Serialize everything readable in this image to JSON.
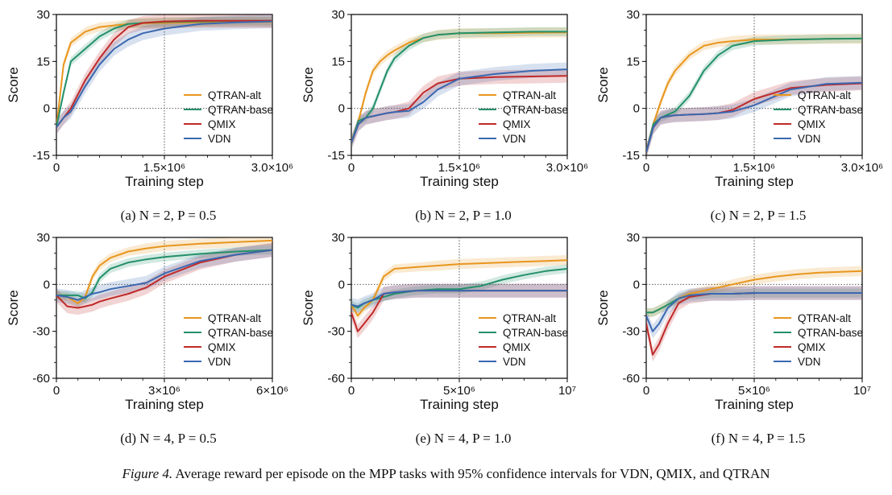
{
  "figure": {
    "caption_label": "Figure 4.",
    "caption_text": " Average reward per episode on the MPP tasks with 95% confidence intervals for VDN, QMIX, and QTRAN"
  },
  "series_colors": {
    "QTRAN-alt": "#e8961e",
    "QTRAN-base": "#23906a",
    "QMIX": "#c02a2a",
    "VDN": "#3a68b0"
  },
  "chart_data": [
    {
      "type": "line",
      "subcaption": "(a) N = 2, P = 0.5",
      "xlabel": "Training step",
      "ylabel": "Score",
      "xlim": [
        0,
        3000000
      ],
      "ylim": [
        -15,
        30
      ],
      "xticks": [
        0,
        1500000,
        3000000
      ],
      "xtick_labels": [
        "0",
        "1.5×10⁶",
        "3.0×10⁶"
      ],
      "yticks": [
        -15,
        0,
        15,
        30
      ],
      "ytick_labels": [
        "-15",
        "0",
        "15",
        "30"
      ],
      "vline": 1500000,
      "hline": 0,
      "legend": "bottom-right",
      "x": [
        0,
        100000,
        200000,
        400000,
        600000,
        800000,
        1000000,
        1200000,
        1500000,
        2000000,
        2500000,
        3000000
      ],
      "series": [
        {
          "name": "QTRAN-alt",
          "values": [
            -6,
            14,
            21,
            24.5,
            26,
            26.5,
            27,
            27.2,
            27.3,
            27.5,
            27.6,
            27.6
          ]
        },
        {
          "name": "QTRAN-base",
          "values": [
            -6,
            5,
            15,
            19,
            23,
            25.5,
            27,
            27.3,
            27.6,
            27.8,
            28,
            28
          ]
        },
        {
          "name": "QMIX",
          "values": [
            -6,
            -3,
            0,
            9,
            16,
            22,
            26,
            27.3,
            27.8,
            28,
            28,
            28
          ]
        },
        {
          "name": "VDN",
          "values": [
            -6,
            -3,
            -1,
            7,
            14,
            19,
            22,
            24,
            25.5,
            27,
            27.5,
            27.8
          ]
        }
      ]
    },
    {
      "type": "line",
      "subcaption": "(b) N = 2, P = 1.0",
      "xlabel": "Training step",
      "ylabel": "Score",
      "xlim": [
        0,
        3000000
      ],
      "ylim": [
        -15,
        30
      ],
      "xticks": [
        0,
        1500000,
        3000000
      ],
      "xtick_labels": [
        "0",
        "1.5×10⁶",
        "3.0×10⁶"
      ],
      "yticks": [
        -15,
        0,
        15,
        30
      ],
      "ytick_labels": [
        "-15",
        "0",
        "15",
        "30"
      ],
      "vline": 1500000,
      "hline": 0,
      "legend": "bottom-right",
      "x": [
        0,
        100000,
        200000,
        300000,
        400000,
        500000,
        600000,
        800000,
        1000000,
        1200000,
        1500000,
        2000000,
        2500000,
        3000000
      ],
      "series": [
        {
          "name": "QTRAN-alt",
          "values": [
            -11,
            -4,
            5,
            12,
            15,
            17,
            18.5,
            21,
            22.5,
            23.5,
            24,
            24,
            24.2,
            24.3
          ]
        },
        {
          "name": "QTRAN-base",
          "values": [
            -11,
            -4,
            -3,
            0,
            6,
            12,
            16,
            20,
            22.5,
            23.5,
            24,
            24.3,
            24.5,
            24.5
          ]
        },
        {
          "name": "QMIX",
          "values": [
            -11,
            -5,
            -3,
            -2.5,
            -2,
            -1.5,
            -1.2,
            0,
            5,
            8,
            9.5,
            10,
            10.2,
            10.4
          ]
        },
        {
          "name": "VDN",
          "values": [
            -11,
            -5,
            -3,
            -2.5,
            -2,
            -1.5,
            -1.2,
            -0.8,
            2,
            6,
            9.5,
            11,
            12,
            12.5
          ]
        }
      ]
    },
    {
      "type": "line",
      "subcaption": "(c) N = 2, P = 1.5",
      "xlabel": "Training step",
      "ylabel": "Score",
      "xlim": [
        0,
        3000000
      ],
      "ylim": [
        -15,
        30
      ],
      "xticks": [
        0,
        1500000,
        3000000
      ],
      "xtick_labels": [
        "0",
        "1.5×10⁶",
        "3.0×10⁶"
      ],
      "yticks": [
        -15,
        0,
        15,
        30
      ],
      "ytick_labels": [
        "-15",
        "0",
        "15",
        "30"
      ],
      "vline": 1500000,
      "hline": 0,
      "legend": "bottom-right",
      "x": [
        0,
        100000,
        200000,
        300000,
        400000,
        600000,
        800000,
        1000000,
        1200000,
        1500000,
        2000000,
        2500000,
        3000000
      ],
      "series": [
        {
          "name": "QTRAN-alt",
          "values": [
            -14,
            -5,
            2,
            8,
            12,
            17,
            20,
            21,
            21.5,
            22,
            22,
            22.2,
            22.3
          ]
        },
        {
          "name": "QTRAN-base",
          "values": [
            -14,
            -5,
            -3,
            -2,
            -1,
            4,
            12,
            17,
            20,
            21.5,
            22,
            22.2,
            22.3
          ]
        },
        {
          "name": "QMIX",
          "values": [
            -14,
            -6,
            -3,
            -2.5,
            -2.2,
            -2,
            -1.8,
            -1.5,
            -0.5,
            3,
            6.5,
            7.5,
            8
          ]
        },
        {
          "name": "VDN",
          "values": [
            -14,
            -6,
            -3,
            -2.5,
            -2.2,
            -2,
            -1.8,
            -1.5,
            -1,
            1,
            6,
            7.8,
            8.2
          ]
        }
      ]
    },
    {
      "type": "line",
      "subcaption": "(d) N = 4, P = 0.5",
      "xlabel": "Training step",
      "ylabel": "Score",
      "xlim": [
        0,
        6000000
      ],
      "ylim": [
        -60,
        30
      ],
      "xticks": [
        0,
        3000000,
        6000000
      ],
      "xtick_labels": [
        "0",
        "3×10⁶",
        "6×10⁶"
      ],
      "yticks": [
        -60,
        -30,
        0,
        30
      ],
      "ytick_labels": [
        "-60",
        "-30",
        "0",
        "30"
      ],
      "vline": 3000000,
      "hline": 0,
      "legend": "bottom-right",
      "x": [
        0,
        300000,
        600000,
        800000,
        1000000,
        1200000,
        1500000,
        2000000,
        2500000,
        3000000,
        4000000,
        5000000,
        6000000
      ],
      "series": [
        {
          "name": "QTRAN-alt",
          "values": [
            -7,
            -8,
            -12,
            -8,
            5,
            12,
            17,
            21,
            23,
            24.5,
            26,
            27,
            28
          ]
        },
        {
          "name": "QTRAN-base",
          "values": [
            -7,
            -7,
            -7,
            -9,
            -5,
            4,
            10,
            14,
            16,
            17.5,
            19.5,
            21,
            22
          ]
        },
        {
          "name": "QMIX",
          "values": [
            -7,
            -14,
            -15,
            -14,
            -13,
            -11,
            -9,
            -6,
            -2,
            5,
            14,
            19,
            22
          ]
        },
        {
          "name": "VDN",
          "values": [
            -7,
            -8,
            -10,
            -8,
            -6,
            -5,
            -3,
            -1,
            1,
            7,
            15,
            19,
            22
          ]
        }
      ]
    },
    {
      "type": "line",
      "subcaption": "(e) N = 4, P = 1.0",
      "xlabel": "Training step",
      "ylabel": "Score",
      "xlim": [
        0,
        10000000
      ],
      "ylim": [
        -60,
        30
      ],
      "xticks": [
        0,
        5000000,
        10000000
      ],
      "xtick_labels": [
        "0",
        "5×10⁶",
        "10⁷"
      ],
      "yticks": [
        -60,
        -30,
        0,
        30
      ],
      "ytick_labels": [
        "-60",
        "-30",
        "0",
        "30"
      ],
      "vline": 5000000,
      "hline": 0,
      "legend": "bottom-right",
      "x": [
        0,
        300000,
        600000,
        1000000,
        1500000,
        2000000,
        3000000,
        4000000,
        5000000,
        6000000,
        7000000,
        8000000,
        9000000,
        10000000
      ],
      "series": [
        {
          "name": "QTRAN-alt",
          "values": [
            -13,
            -20,
            -15,
            -10,
            5,
            10,
            11,
            12,
            13,
            13.5,
            14,
            14.5,
            15,
            15.5
          ]
        },
        {
          "name": "QTRAN-base",
          "values": [
            -13,
            -15,
            -12,
            -10,
            -8,
            -6,
            -4,
            -3,
            -3,
            -1,
            3,
            6,
            8.5,
            10
          ]
        },
        {
          "name": "QMIX",
          "values": [
            -18,
            -30,
            -25,
            -18,
            -6,
            -5,
            -4,
            -4,
            -4,
            -4,
            -4,
            -4,
            -4,
            -4
          ]
        },
        {
          "name": "VDN",
          "values": [
            -13,
            -14,
            -12,
            -10,
            -6,
            -5,
            -4,
            -4,
            -4,
            -4,
            -4,
            -4,
            -4,
            -4
          ]
        }
      ]
    },
    {
      "type": "line",
      "subcaption": "(f) N = 4, P = 1.5",
      "xlabel": "Training step",
      "ylabel": "Score",
      "xlim": [
        0,
        10000000
      ],
      "ylim": [
        -60,
        30
      ],
      "xticks": [
        0,
        5000000,
        10000000
      ],
      "xtick_labels": [
        "0",
        "5×10⁶",
        "10⁷"
      ],
      "yticks": [
        -60,
        -30,
        0,
        30
      ],
      "ytick_labels": [
        "-60",
        "-30",
        "0",
        "30"
      ],
      "vline": 5000000,
      "hline": 0,
      "legend": "bottom-right",
      "x": [
        0,
        300000,
        600000,
        1000000,
        1500000,
        2000000,
        3000000,
        4000000,
        5000000,
        6000000,
        7000000,
        8000000,
        9000000,
        10000000
      ],
      "series": [
        {
          "name": "QTRAN-alt",
          "values": [
            -18,
            -18,
            -16,
            -13,
            -9,
            -6,
            -3,
            0,
            3,
            5,
            6.5,
            7.5,
            8,
            8.5
          ]
        },
        {
          "name": "QTRAN-base",
          "values": [
            -18,
            -18,
            -16,
            -13,
            -9,
            -7,
            -6,
            -6,
            -5.5,
            -5.5,
            -5.5,
            -5.5,
            -5.5,
            -5.5
          ]
        },
        {
          "name": "QMIX",
          "values": [
            -25,
            -45,
            -38,
            -25,
            -12,
            -8,
            -6,
            -6,
            -5.5,
            -5.5,
            -5.5,
            -5.5,
            -5.5,
            -5.5
          ]
        },
        {
          "name": "VDN",
          "values": [
            -20,
            -30,
            -25,
            -15,
            -9,
            -7,
            -6,
            -6,
            -5.5,
            -5.5,
            -5.5,
            -5.5,
            -5.5,
            -5.5
          ]
        }
      ]
    }
  ]
}
